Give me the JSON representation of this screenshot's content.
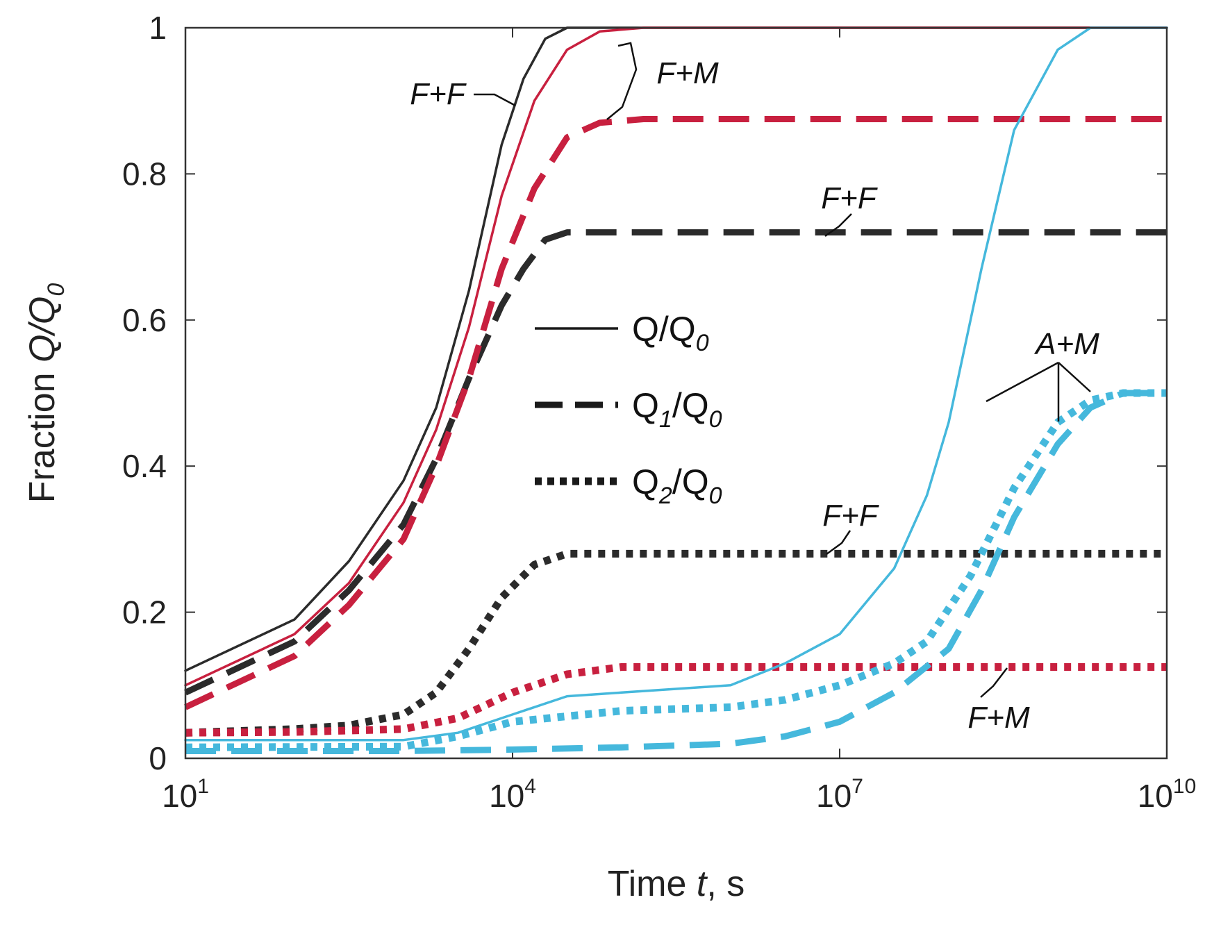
{
  "chart_data": {
    "type": "line",
    "xlabel_prefix": "Time ",
    "xlabel_var": "t",
    "xlabel_suffix": ", s",
    "ylabel_prefix": "Fraction ",
    "ylabel_var": "Q/Q",
    "ylabel_sub": "0",
    "x_scale": "log",
    "xlim": [
      10,
      10000000000
    ],
    "ylim": [
      0,
      1
    ],
    "x_ticks": [
      {
        "base": "10",
        "exp": "1"
      },
      {
        "base": "10",
        "exp": "4"
      },
      {
        "base": "10",
        "exp": "7"
      },
      {
        "base": "10",
        "exp": "10"
      }
    ],
    "y_ticks": [
      "0",
      "0.2",
      "0.4",
      "0.6",
      "0.8",
      "1"
    ],
    "colors": {
      "F+F": "#2b2b2b",
      "F+M": "#c8203f",
      "A+M": "#45b8dc"
    },
    "legend": [
      {
        "main": "Q/Q",
        "sub1": "",
        "mid": "",
        "sub2": "0",
        "style": "solid"
      },
      {
        "main": "Q",
        "sub1": "1",
        "mid": "/Q",
        "sub2": "0",
        "style": "dashed"
      },
      {
        "main": "Q",
        "sub1": "2",
        "mid": "/Q",
        "sub2": "0",
        "style": "dotted"
      }
    ],
    "annotations": [
      {
        "text": "F+F"
      },
      {
        "text": "F+M"
      },
      {
        "text": "F+F"
      },
      {
        "text": "A+M"
      },
      {
        "text": "F+F"
      },
      {
        "text": "F+M"
      }
    ],
    "series": [
      {
        "name": "F+F Q/Q0",
        "group": "F+F",
        "style": "solid",
        "logx": [
          1,
          2,
          2.5,
          3,
          3.3,
          3.6,
          3.9,
          4.1,
          4.3,
          4.5,
          4.7,
          5,
          6,
          10
        ],
        "y": [
          0.12,
          0.19,
          0.27,
          0.38,
          0.48,
          0.64,
          0.84,
          0.93,
          0.985,
          1,
          1,
          1,
          1,
          1
        ]
      },
      {
        "name": "F+M Q/Q0",
        "group": "F+M",
        "style": "solid",
        "logx": [
          1,
          2,
          2.5,
          3,
          3.3,
          3.6,
          3.9,
          4.2,
          4.5,
          4.8,
          5.2,
          6,
          10
        ],
        "y": [
          0.1,
          0.17,
          0.24,
          0.35,
          0.45,
          0.59,
          0.77,
          0.9,
          0.97,
          0.995,
          1,
          1,
          1
        ]
      },
      {
        "name": "F+F Q1/Q0",
        "group": "F+F",
        "style": "dashed",
        "logx": [
          1,
          2,
          2.5,
          3,
          3.3,
          3.6,
          3.9,
          4.1,
          4.3,
          4.5,
          5,
          6,
          10
        ],
        "y": [
          0.09,
          0.16,
          0.23,
          0.32,
          0.41,
          0.52,
          0.62,
          0.67,
          0.71,
          0.72,
          0.72,
          0.72,
          0.72
        ]
      },
      {
        "name": "F+M Q1/Q0",
        "group": "F+M",
        "style": "dashed",
        "logx": [
          1,
          2,
          2.5,
          3,
          3.3,
          3.6,
          3.9,
          4.2,
          4.5,
          4.8,
          5.2,
          6,
          10
        ],
        "y": [
          0.07,
          0.14,
          0.21,
          0.3,
          0.4,
          0.52,
          0.67,
          0.78,
          0.85,
          0.87,
          0.875,
          0.875,
          0.875
        ]
      },
      {
        "name": "F+F Q2/Q0",
        "group": "F+F",
        "style": "dotted",
        "logx": [
          1,
          2,
          2.5,
          3,
          3.3,
          3.6,
          3.9,
          4.2,
          4.5,
          5,
          6,
          10
        ],
        "y": [
          0.035,
          0.04,
          0.045,
          0.06,
          0.09,
          0.15,
          0.22,
          0.265,
          0.28,
          0.28,
          0.28,
          0.28
        ]
      },
      {
        "name": "F+M Q2/Q0",
        "group": "F+M",
        "style": "dotted",
        "logx": [
          1,
          2,
          3,
          3.5,
          4,
          4.5,
          5,
          6,
          10
        ],
        "y": [
          0.035,
          0.036,
          0.04,
          0.055,
          0.09,
          0.115,
          0.125,
          0.125,
          0.125
        ]
      },
      {
        "name": "A+M Q/Q0",
        "group": "A+M",
        "style": "solid",
        "logx": [
          1,
          3,
          3.5,
          4,
          4.5,
          5,
          6,
          6.5,
          7,
          7.5,
          7.8,
          8,
          8.3,
          8.6,
          9,
          9.3,
          9.6,
          10
        ],
        "y": [
          0.025,
          0.025,
          0.035,
          0.06,
          0.085,
          0.09,
          0.1,
          0.13,
          0.17,
          0.26,
          0.36,
          0.46,
          0.67,
          0.86,
          0.97,
          1,
          1,
          1
        ]
      },
      {
        "name": "A+M Q1/Q0",
        "group": "A+M",
        "style": "dashed",
        "logx": [
          1,
          3,
          4,
          5,
          6,
          6.5,
          7,
          7.5,
          8,
          8.3,
          8.6,
          9,
          9.3,
          9.6,
          10
        ],
        "y": [
          0.01,
          0.01,
          0.012,
          0.015,
          0.02,
          0.03,
          0.05,
          0.09,
          0.15,
          0.23,
          0.33,
          0.43,
          0.48,
          0.5,
          0.5
        ]
      },
      {
        "name": "A+M Q2/Q0",
        "group": "A+M",
        "style": "dotted",
        "logx": [
          1,
          3,
          3.5,
          4,
          5,
          6,
          6.5,
          7,
          7.5,
          7.8,
          8.2,
          8.6,
          9,
          9.3,
          9.6,
          10
        ],
        "y": [
          0.015,
          0.016,
          0.03,
          0.05,
          0.065,
          0.07,
          0.08,
          0.1,
          0.13,
          0.16,
          0.25,
          0.37,
          0.46,
          0.49,
          0.5,
          0.5
        ]
      }
    ]
  }
}
